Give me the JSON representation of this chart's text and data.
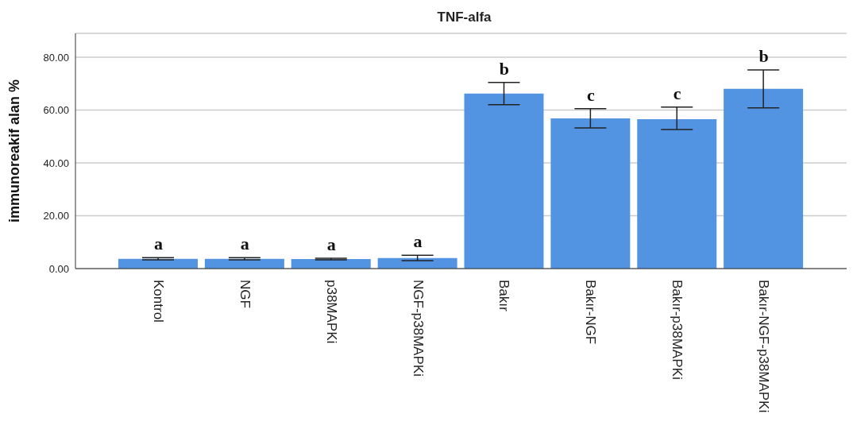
{
  "chart_data": {
    "type": "bar",
    "title": "TNF-alfa",
    "ylabel": "immunoreakif alan %",
    "categories": [
      "Kontrol",
      "NGF",
      "p38MAPKi",
      "NGF-p38MAPKi",
      "Bakır",
      "Bakır-NGF",
      "Bakır-p38MAPKi",
      "Bakır-NGF-p38MAPKi"
    ],
    "values": [
      3.7,
      3.7,
      3.6,
      4.0,
      66.2,
      56.8,
      56.5,
      68.0
    ],
    "errors": [
      [
        3.3,
        4.1
      ],
      [
        3.3,
        4.1
      ],
      [
        3.3,
        3.9
      ],
      [
        3.0,
        5.0
      ],
      [
        62.0,
        70.4
      ],
      [
        53.2,
        60.5
      ],
      [
        52.6,
        61.1
      ],
      [
        60.8,
        75.2
      ]
    ],
    "color": "#5294e2",
    "ylim": [
      0,
      89
    ],
    "yticks": [
      {
        "value": 0,
        "label": "0.00"
      },
      {
        "value": 20,
        "label": "20.00"
      },
      {
        "value": 40,
        "label": "40.00"
      },
      {
        "value": 60,
        "label": "60.00"
      },
      {
        "value": 80,
        "label": "80.00"
      }
    ],
    "grid": "y",
    "legend": false,
    "annotations": [
      {
        "text": "a",
        "x": "Kontrol",
        "y": 4.1
      },
      {
        "text": "a",
        "x": "NGF",
        "y": 4.1
      },
      {
        "text": "a",
        "x": "p38MAPKi",
        "y": 3.9
      },
      {
        "text": "a",
        "x": "NGF-p38MAPKi",
        "y": 5.0
      },
      {
        "text": "b",
        "x": "Bakır",
        "y": 70.4
      },
      {
        "text": "c",
        "x": "Bakır-NGF",
        "y": 60.5
      },
      {
        "text": "c",
        "x": "Bakır-p38MAPKi",
        "y": 61.1
      },
      {
        "text": "b",
        "x": "Bakır-NGF-p38MAPKi",
        "y": 75.2
      }
    ]
  }
}
